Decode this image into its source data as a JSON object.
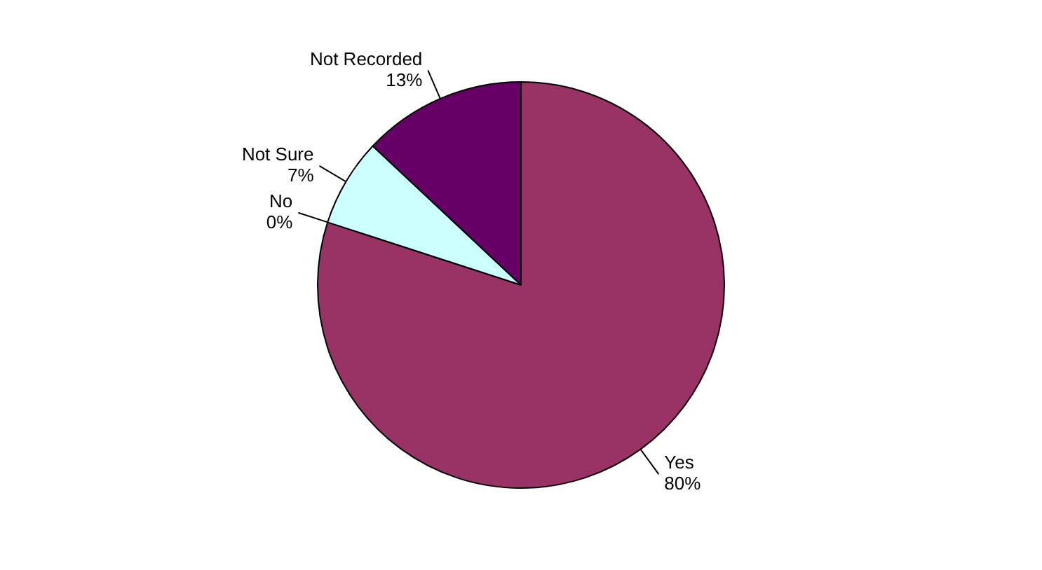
{
  "chart_data": {
    "type": "pie",
    "categories": [
      "Yes",
      "No",
      "Not Sure",
      "Not Recorded"
    ],
    "values": [
      80,
      0,
      7,
      13
    ],
    "value_labels": [
      "80%",
      "0%",
      "7%",
      "13%"
    ],
    "colors": [
      "#993366",
      "#808060",
      "#ccffff",
      "#660066"
    ],
    "legend": false
  }
}
